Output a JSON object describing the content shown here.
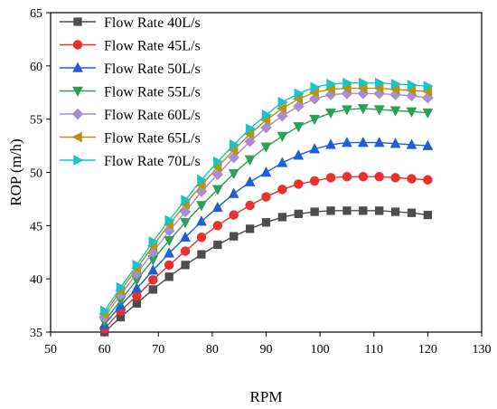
{
  "chart_data": {
    "type": "line",
    "xlabel": "RPM",
    "ylabel": "ROP (m/h)",
    "xlim": [
      50,
      130
    ],
    "ylim": [
      35,
      65
    ],
    "xticks": [
      50,
      60,
      70,
      80,
      90,
      100,
      110,
      120,
      130
    ],
    "yticks": [
      35,
      40,
      45,
      50,
      55,
      60,
      65
    ],
    "grid": false,
    "legend_position": "top-left",
    "x": [
      60,
      63,
      66,
      69,
      72,
      75,
      78,
      81,
      84,
      87,
      90,
      93,
      96,
      99,
      102,
      105,
      108,
      111,
      114,
      117,
      120
    ],
    "series": [
      {
        "name": "Flow Rate 40L/s",
        "color": "#4d4d4d",
        "marker": "square",
        "values": [
          35.0,
          36.4,
          37.7,
          39.0,
          40.2,
          41.3,
          42.3,
          43.2,
          44.0,
          44.7,
          45.3,
          45.8,
          46.1,
          46.3,
          46.4,
          46.4,
          46.4,
          46.4,
          46.3,
          46.2,
          46.0
        ]
      },
      {
        "name": "Flow Rate 45L/s",
        "color": "#e8312e",
        "marker": "circle",
        "values": [
          35.3,
          37.0,
          38.4,
          39.9,
          41.3,
          42.6,
          43.9,
          45.0,
          46.0,
          46.9,
          47.7,
          48.4,
          48.9,
          49.2,
          49.5,
          49.6,
          49.6,
          49.6,
          49.5,
          49.4,
          49.3
        ]
      },
      {
        "name": "Flow Rate 50L/s",
        "color": "#1f5fd6",
        "marker": "triangle-up",
        "values": [
          35.7,
          37.5,
          39.1,
          40.8,
          42.4,
          43.9,
          45.4,
          46.7,
          48.0,
          49.1,
          50.0,
          50.9,
          51.6,
          52.2,
          52.6,
          52.8,
          52.8,
          52.8,
          52.7,
          52.6,
          52.5
        ]
      },
      {
        "name": "Flow Rate 55L/s",
        "color": "#2aa05a",
        "marker": "triangle-down",
        "values": [
          36.0,
          38.0,
          39.9,
          41.8,
          43.6,
          45.3,
          46.9,
          48.4,
          49.9,
          51.2,
          52.4,
          53.4,
          54.3,
          55.0,
          55.6,
          55.9,
          56.0,
          55.9,
          55.8,
          55.7,
          55.6
        ]
      },
      {
        "name": "Flow Rate 60L/s",
        "color": "#a98bd6",
        "marker": "diamond",
        "values": [
          36.4,
          38.5,
          40.5,
          42.5,
          44.5,
          46.3,
          48.2,
          49.8,
          51.4,
          52.9,
          54.2,
          55.3,
          56.2,
          56.9,
          57.3,
          57.4,
          57.4,
          57.4,
          57.3,
          57.2,
          57.0
        ]
      },
      {
        "name": "Flow Rate 65L/s",
        "color": "#b8930f",
        "marker": "triangle-left",
        "values": [
          36.7,
          38.9,
          41.0,
          43.1,
          45.1,
          47.0,
          48.8,
          50.5,
          52.1,
          53.6,
          54.9,
          56.0,
          56.9,
          57.5,
          57.8,
          57.9,
          57.9,
          57.9,
          57.8,
          57.7,
          57.6
        ]
      },
      {
        "name": "Flow Rate 70L/s",
        "color": "#19c4c8",
        "marker": "triangle-right",
        "values": [
          37.0,
          39.2,
          41.3,
          43.5,
          45.5,
          47.4,
          49.3,
          51.0,
          52.6,
          54.1,
          55.4,
          56.6,
          57.4,
          58.0,
          58.3,
          58.4,
          58.4,
          58.4,
          58.3,
          58.2,
          58.1
        ]
      }
    ]
  }
}
